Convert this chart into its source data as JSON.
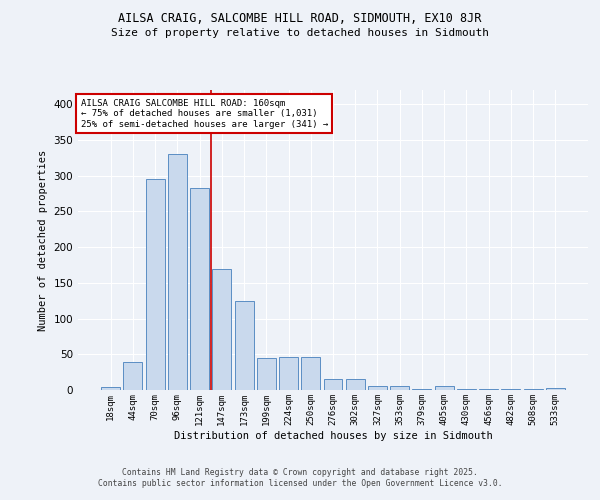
{
  "title_line1": "AILSA CRAIG, SALCOMBE HILL ROAD, SIDMOUTH, EX10 8JR",
  "title_line2": "Size of property relative to detached houses in Sidmouth",
  "xlabel": "Distribution of detached houses by size in Sidmouth",
  "ylabel": "Number of detached properties",
  "bar_color": "#c9d9ed",
  "bar_edge_color": "#5b8ec4",
  "categories": [
    "18sqm",
    "44sqm",
    "70sqm",
    "96sqm",
    "121sqm",
    "147sqm",
    "173sqm",
    "199sqm",
    "224sqm",
    "250sqm",
    "276sqm",
    "302sqm",
    "327sqm",
    "353sqm",
    "379sqm",
    "405sqm",
    "430sqm",
    "456sqm",
    "482sqm",
    "508sqm",
    "533sqm"
  ],
  "values": [
    4,
    39,
    295,
    330,
    283,
    170,
    125,
    45,
    46,
    46,
    15,
    15,
    5,
    6,
    1,
    6,
    1,
    1,
    1,
    1,
    3
  ],
  "ylim": [
    0,
    420
  ],
  "yticks": [
    0,
    50,
    100,
    150,
    200,
    250,
    300,
    350,
    400
  ],
  "property_line_x": 4.5,
  "annotation_text": "AILSA CRAIG SALCOMBE HILL ROAD: 160sqm\n← 75% of detached houses are smaller (1,031)\n25% of semi-detached houses are larger (341) →",
  "annotation_box_color": "#ffffff",
  "annotation_border_color": "#cc0000",
  "line_color": "#cc0000",
  "bg_color": "#eef2f8",
  "grid_color": "#ffffff",
  "footer_line1": "Contains HM Land Registry data © Crown copyright and database right 2025.",
  "footer_line2": "Contains public sector information licensed under the Open Government Licence v3.0."
}
